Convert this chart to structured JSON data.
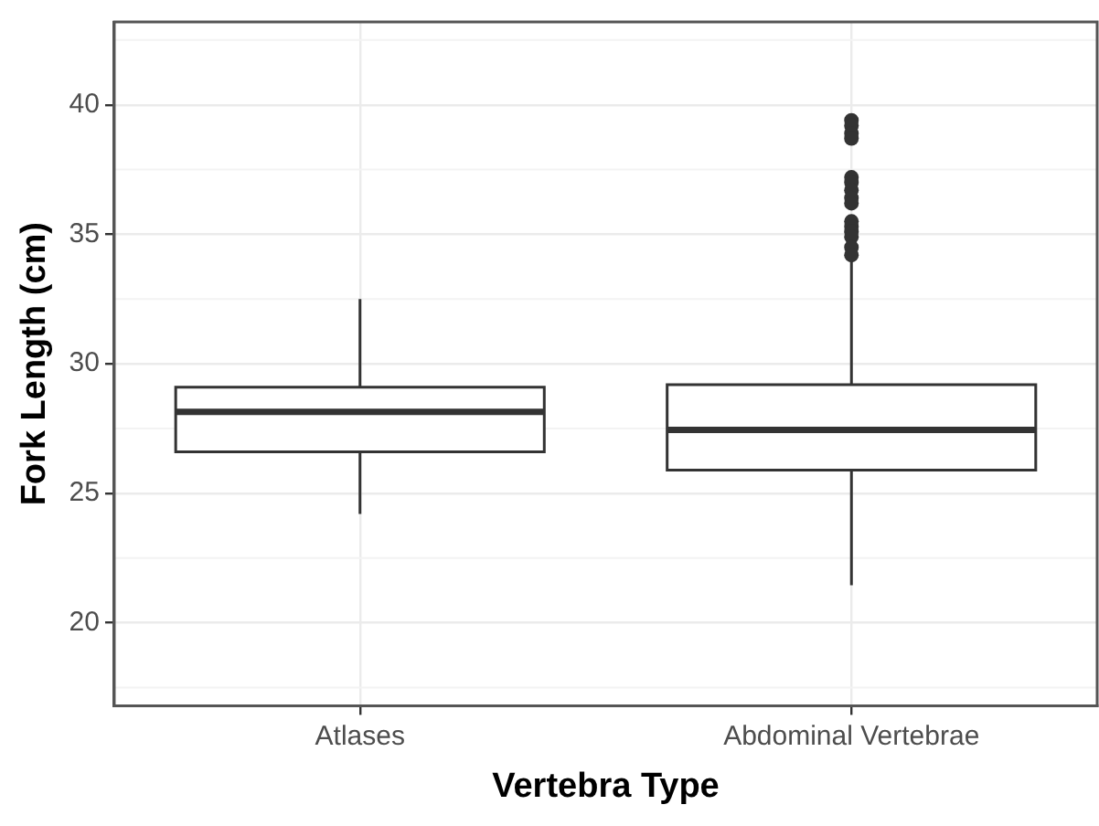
{
  "chart_data": {
    "type": "box",
    "xlabel": "Vertebra Type",
    "ylabel": "Fork Length (cm)",
    "categories": [
      "Atlases",
      "Abdominal Vertebrae"
    ],
    "boxes": [
      {
        "low": 24.2,
        "q1": 26.6,
        "median": 28.15,
        "q3": 29.1,
        "high": 32.5
      },
      {
        "low": 21.45,
        "q1": 25.9,
        "median": 27.45,
        "q3": 29.2,
        "high": 34.0,
        "outliers": [
          39.4,
          39.2,
          38.9,
          38.7,
          37.2,
          37.0,
          36.7,
          36.4,
          36.2,
          35.5,
          35.3,
          35.1,
          34.9,
          34.5,
          34.2
        ]
      }
    ],
    "ylim": [
      16.8,
      43.2
    ],
    "yticks": [
      20,
      25,
      30,
      35,
      40
    ],
    "grid": true
  }
}
